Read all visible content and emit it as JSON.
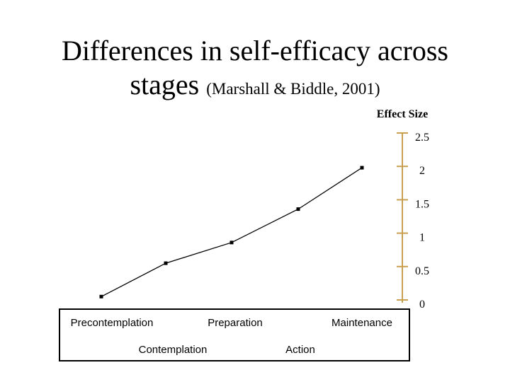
{
  "chart_data": {
    "type": "line",
    "title_main": "Differences in self-efficacy across",
    "title_line2": "stages",
    "title_citation": "(Marshall & Biddle, 2001)",
    "ylabel": "Effect Size",
    "ylim": [
      0,
      2.5
    ],
    "yticks": [
      "2.5",
      "2",
      "1.5",
      "1",
      "0.5",
      "0"
    ],
    "ytick_values": [
      2.5,
      2,
      1.5,
      1,
      0.5,
      0
    ],
    "categories": [
      "Precontemplation",
      "Contemplation",
      "Preparation",
      "Action",
      "Maintenance"
    ],
    "values": [
      0.05,
      0.55,
      0.86,
      1.36,
      1.98
    ],
    "grid": false,
    "colors": {
      "axis": "#c8a050",
      "line": "#000000"
    }
  }
}
